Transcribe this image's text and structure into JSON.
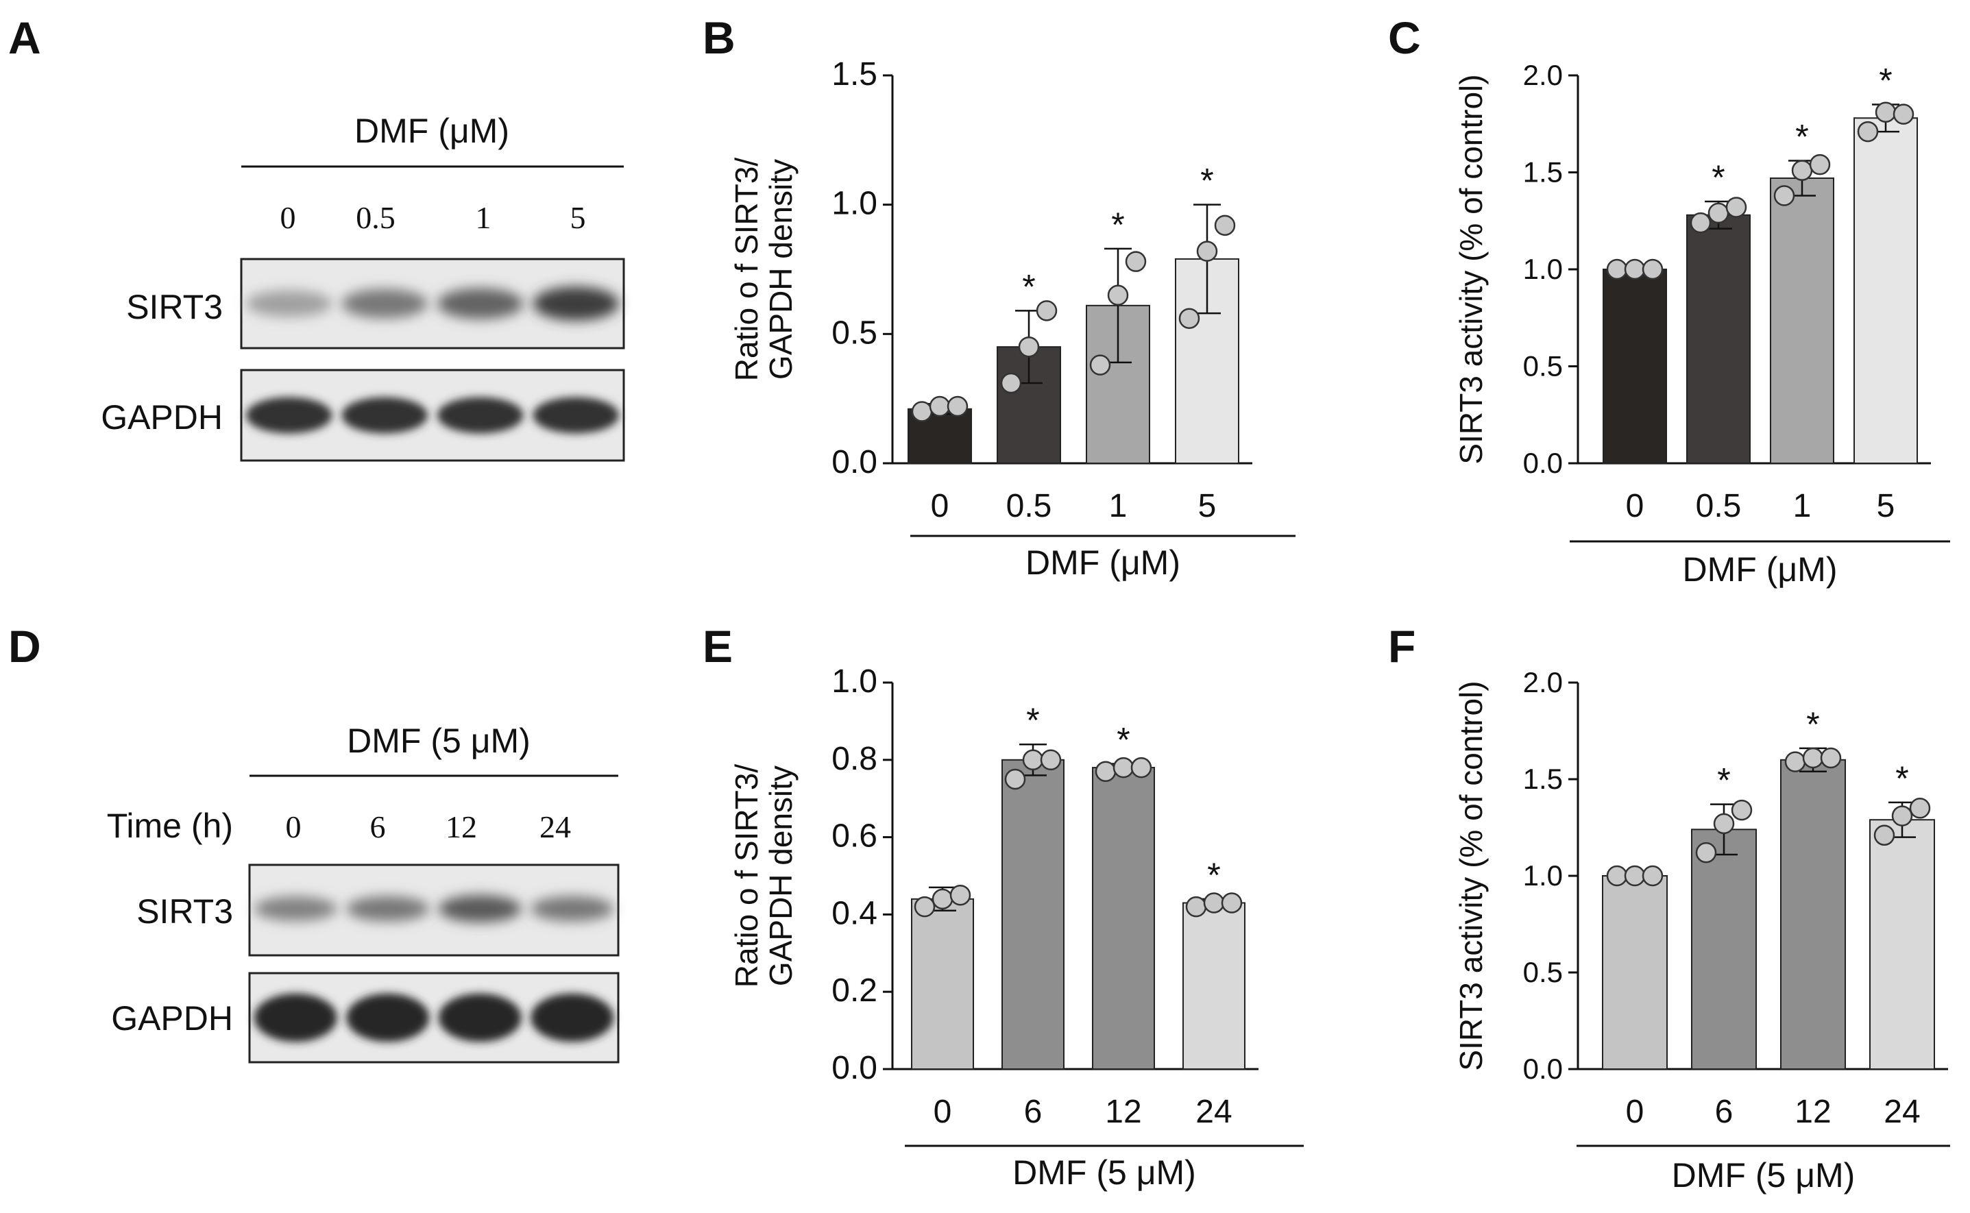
{
  "panel_labels": [
    "A",
    "B",
    "C",
    "D",
    "E",
    "F"
  ],
  "blots": [
    {
      "panel": "A",
      "header": "DMF (μM)",
      "time_label": "",
      "lanes": [
        "0",
        "0.5",
        "1",
        "5"
      ],
      "rows": [
        {
          "label": "SIRT3",
          "intensity": [
            0.35,
            0.55,
            0.65,
            0.85
          ]
        },
        {
          "label": "GAPDH",
          "intensity": [
            0.9,
            0.9,
            0.9,
            0.9
          ]
        }
      ]
    },
    {
      "panel": "D",
      "header": "DMF (5 μM)",
      "time_label": "Time (h)",
      "lanes": [
        "0",
        "6",
        "12",
        "24"
      ],
      "rows": [
        {
          "label": "SIRT3",
          "intensity": [
            0.5,
            0.55,
            0.7,
            0.55
          ]
        },
        {
          "label": "GAPDH",
          "intensity": [
            0.95,
            0.95,
            0.95,
            0.95
          ]
        }
      ]
    }
  ],
  "chart_data": [
    {
      "panel": "B",
      "type": "bar",
      "categories": [
        "0",
        "0.5",
        "1",
        "5"
      ],
      "values": [
        0.21,
        0.45,
        0.61,
        0.79
      ],
      "errors": [
        0.02,
        0.14,
        0.22,
        0.21
      ],
      "points": [
        [
          0.2,
          0.22,
          0.22
        ],
        [
          0.31,
          0.45,
          0.59
        ],
        [
          0.38,
          0.65,
          0.78
        ],
        [
          0.56,
          0.82,
          0.92
        ]
      ],
      "significant": [
        false,
        true,
        true,
        true
      ],
      "star": "*",
      "ylabel": [
        "Ratio o f SIRT3/",
        "GAPDH density"
      ],
      "xlabel": "DMF (μM)",
      "ylim": [
        0,
        1.5
      ],
      "yticks": [
        "0.0",
        "0.5",
        "1.0",
        "1.5"
      ],
      "bar_colors": [
        "#2a2624",
        "#3f3b3b",
        "#a7a7a7",
        "#e6e6e6"
      ]
    },
    {
      "panel": "C",
      "type": "bar",
      "categories": [
        "0",
        "0.5",
        "1",
        "5"
      ],
      "values": [
        1.0,
        1.28,
        1.47,
        1.78
      ],
      "errors": [
        0.01,
        0.07,
        0.09,
        0.07
      ],
      "points": [
        [
          1.0,
          1.0,
          1.0
        ],
        [
          1.24,
          1.29,
          1.32
        ],
        [
          1.38,
          1.51,
          1.54
        ],
        [
          1.71,
          1.81,
          1.8
        ]
      ],
      "significant": [
        false,
        true,
        true,
        true
      ],
      "star": "*",
      "ylabel": [
        "SIRT3 activity (% of control)"
      ],
      "xlabel": "DMF (μM)",
      "ylim": [
        0,
        2.0
      ],
      "yticks": [
        "0.0",
        "0.5",
        "1.0",
        "1.5",
        "2.0"
      ],
      "bar_colors": [
        "#2a2624",
        "#3f3b3b",
        "#a7a7a7",
        "#e6e6e6"
      ]
    },
    {
      "panel": "E",
      "type": "bar",
      "categories": [
        "0",
        "6",
        "12",
        "24"
      ],
      "values": [
        0.44,
        0.8,
        0.78,
        0.43
      ],
      "errors": [
        0.03,
        0.04,
        0.01,
        0.01
      ],
      "points": [
        [
          0.42,
          0.44,
          0.45
        ],
        [
          0.75,
          0.8,
          0.8
        ],
        [
          0.77,
          0.78,
          0.78
        ],
        [
          0.42,
          0.43,
          0.43
        ]
      ],
      "significant": [
        false,
        true,
        true,
        true
      ],
      "star": "*",
      "ylabel": [
        "Ratio o f SIRT3/",
        "GAPDH density"
      ],
      "xlabel": "DMF (5 μM)",
      "ylim": [
        0,
        1.0
      ],
      "yticks": [
        "0.0",
        "0.2",
        "0.4",
        "0.6",
        "0.8",
        "1.0"
      ],
      "bar_colors": [
        "#c4c4c4",
        "#8e8e8e",
        "#8e8e8e",
        "#d9d9d9"
      ]
    },
    {
      "panel": "F",
      "type": "bar",
      "categories": [
        "0",
        "6",
        "12",
        "24"
      ],
      "values": [
        1.0,
        1.24,
        1.6,
        1.29
      ],
      "errors": [
        0.01,
        0.13,
        0.06,
        0.09
      ],
      "points": [
        [
          1.0,
          1.0,
          1.0
        ],
        [
          1.12,
          1.27,
          1.34
        ],
        [
          1.59,
          1.61,
          1.61
        ],
        [
          1.21,
          1.31,
          1.35
        ]
      ],
      "significant": [
        false,
        true,
        true,
        true
      ],
      "star": "*",
      "ylabel": [
        "SIRT3 activity (% of control)"
      ],
      "xlabel": "DMF (5 μM)",
      "ylim": [
        0,
        2.0
      ],
      "yticks": [
        "0.0",
        "0.5",
        "1.0",
        "1.5",
        "2.0"
      ],
      "bar_colors": [
        "#c4c4c4",
        "#8e8e8e",
        "#8e8e8e",
        "#d9d9d9"
      ]
    }
  ]
}
